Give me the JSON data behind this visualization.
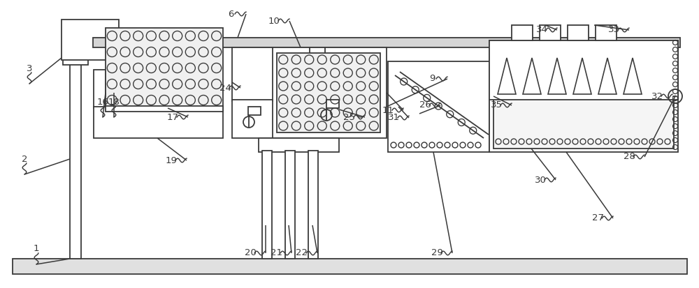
{
  "fig_width": 10.0,
  "fig_height": 4.13,
  "dpi": 100,
  "bg_color": "#ffffff",
  "lc": "#3a3a3a",
  "lw": 1.3
}
